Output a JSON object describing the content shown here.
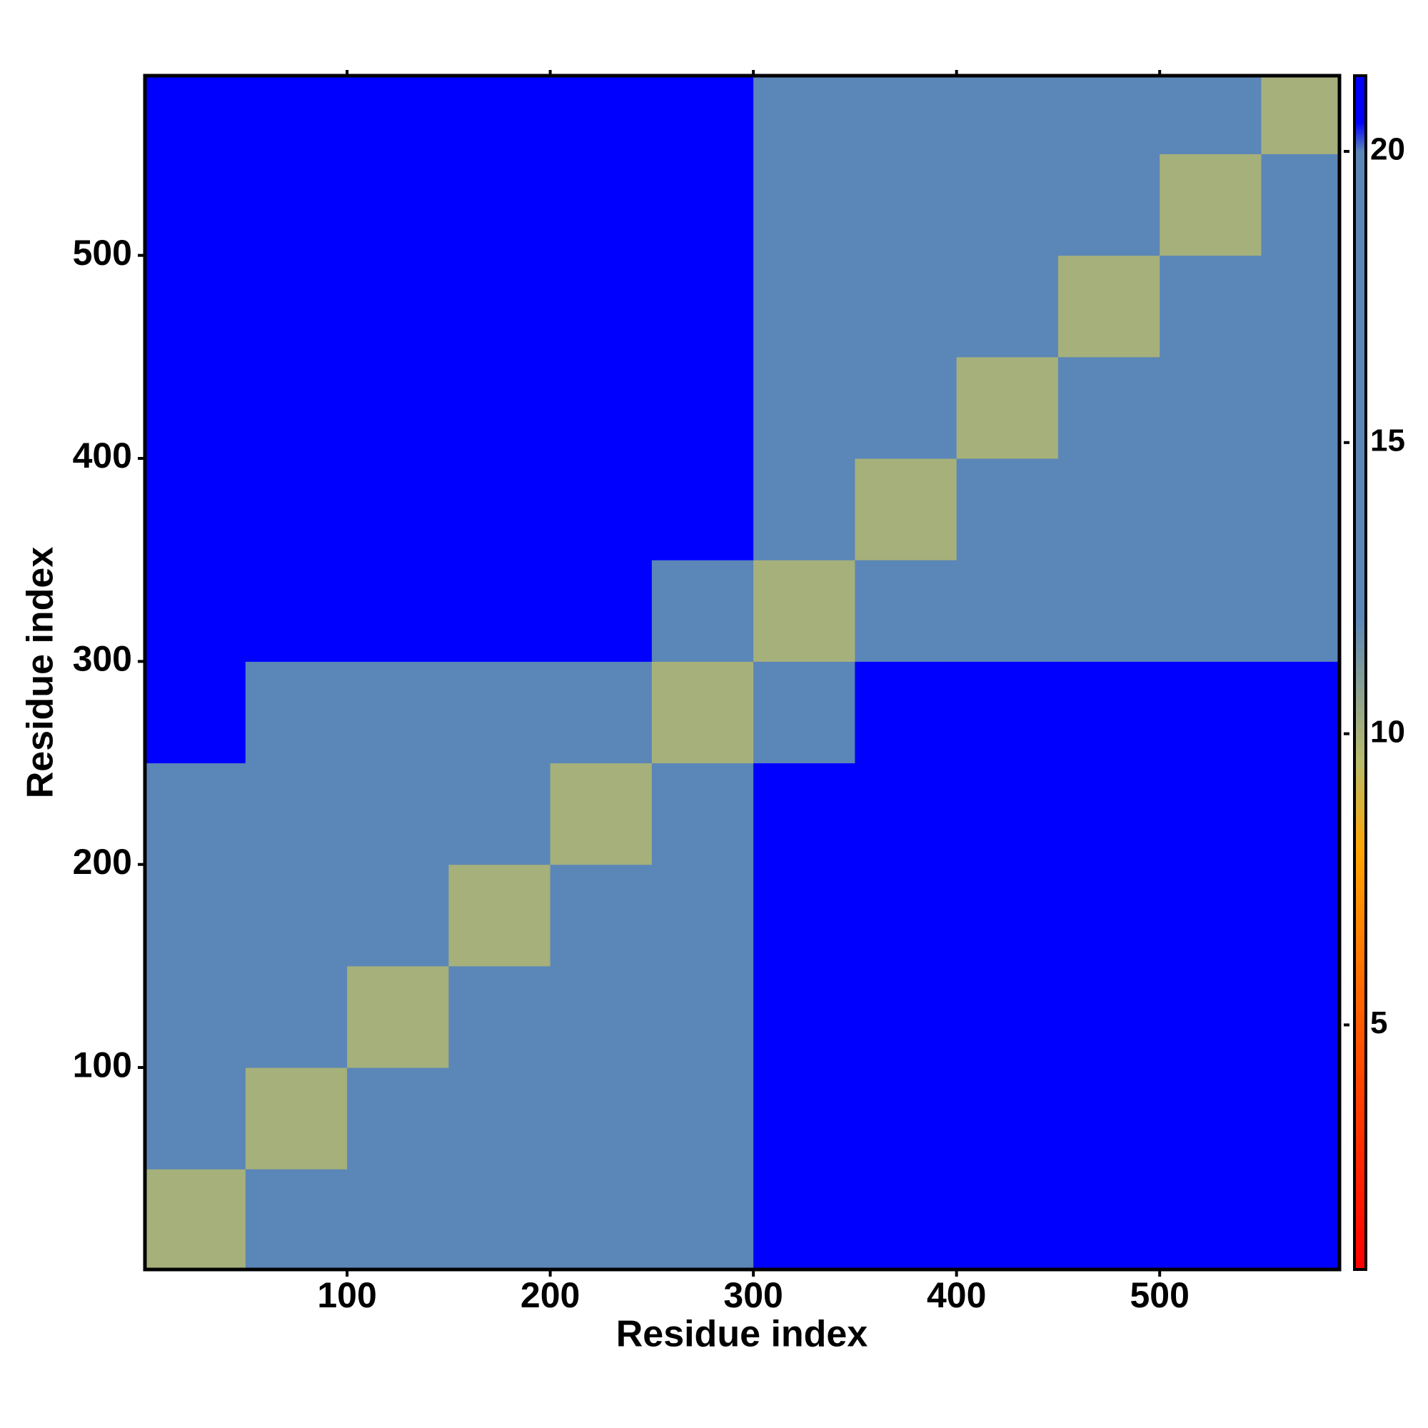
{
  "chart_data": {
    "type": "heatmap",
    "x_label": "Residue index",
    "y_label": "Residue index",
    "xlim": [
      0.5,
      588.5
    ],
    "ylim": [
      0.5,
      588.5
    ],
    "xticks": [
      100,
      200,
      300,
      400,
      500
    ],
    "yticks": [
      100,
      200,
      300,
      400,
      500
    ],
    "x_edges": [
      0.5,
      50,
      100,
      150,
      200,
      250,
      300,
      350,
      400,
      450,
      500,
      550,
      588.5
    ],
    "y_edges": [
      0.5,
      50,
      100,
      150,
      200,
      250,
      300,
      350,
      400,
      450,
      500,
      550,
      588.5
    ],
    "z": [
      [
        10,
        17,
        19,
        19,
        19,
        19.5,
        21,
        21,
        21,
        21,
        21,
        21
      ],
      [
        17,
        10,
        17,
        19,
        19,
        19,
        21,
        21,
        21,
        21,
        21,
        21
      ],
      [
        19,
        17,
        10,
        17,
        19,
        19,
        20.9,
        21,
        21,
        21,
        21,
        21
      ],
      [
        19,
        19,
        17,
        10,
        17,
        19,
        20.8,
        20.9,
        21,
        21,
        21,
        21
      ],
      [
        20,
        19,
        19,
        17,
        10,
        17,
        20.7,
        20.8,
        20.9,
        21,
        21,
        21
      ],
      [
        20.8,
        19.5,
        19,
        19,
        17,
        10,
        19,
        20.8,
        20.8,
        20.8,
        20.9,
        21
      ],
      [
        21,
        20.8,
        20.7,
        20.7,
        20.8,
        19,
        10,
        17,
        19,
        19,
        19,
        19
      ],
      [
        21,
        21,
        20.8,
        20.8,
        20.8,
        20.8,
        17,
        10,
        17,
        19,
        19,
        19
      ],
      [
        21,
        21,
        20.8,
        20.8,
        20.8,
        20.9,
        19,
        17,
        10,
        17,
        19,
        19
      ],
      [
        21,
        21,
        20.9,
        20.8,
        20.8,
        20.9,
        19,
        19,
        17,
        10,
        17,
        19
      ],
      [
        21,
        21,
        21,
        20.9,
        20.9,
        21,
        19,
        19,
        19,
        17,
        10,
        17
      ],
      [
        21,
        21,
        21,
        21,
        21,
        21,
        19,
        19,
        19,
        19,
        17,
        10
      ]
    ],
    "clim": [
      0.8,
      21.3
    ],
    "cticks": [
      5,
      10,
      15,
      20
    ],
    "colorscale": [
      [
        0.8,
        "#ff0000"
      ],
      [
        5,
        "#ff5a00"
      ],
      [
        8,
        "#ffa500"
      ],
      [
        9.5,
        "#b9bb6a"
      ],
      [
        12,
        "#5b86b8"
      ],
      [
        20,
        "#5b86b8"
      ],
      [
        20.5,
        "#0000ff"
      ],
      [
        21.3,
        "#0000ff"
      ]
    ]
  }
}
